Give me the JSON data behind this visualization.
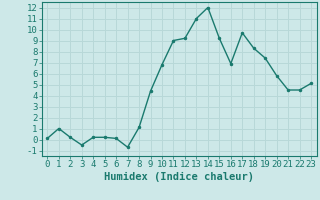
{
  "x": [
    0,
    1,
    2,
    3,
    4,
    5,
    6,
    7,
    8,
    9,
    10,
    11,
    12,
    13,
    14,
    15,
    16,
    17,
    18,
    19,
    20,
    21,
    22,
    23
  ],
  "y": [
    0.1,
    1.0,
    0.2,
    -0.5,
    0.2,
    0.2,
    0.1,
    -0.7,
    1.1,
    4.4,
    6.8,
    9.0,
    9.2,
    11.0,
    12.0,
    9.2,
    6.9,
    9.7,
    8.3,
    7.4,
    5.8,
    4.5,
    4.5,
    5.1
  ],
  "line_color": "#1a7a6e",
  "marker": ".",
  "marker_size": 3,
  "linewidth": 1.0,
  "xlabel": "Humidex (Indice chaleur)",
  "xlim": [
    -0.5,
    23.5
  ],
  "ylim": [
    -1.5,
    12.5
  ],
  "yticks": [
    -1,
    0,
    1,
    2,
    3,
    4,
    5,
    6,
    7,
    8,
    9,
    10,
    11,
    12
  ],
  "xticks": [
    0,
    1,
    2,
    3,
    4,
    5,
    6,
    7,
    8,
    9,
    10,
    11,
    12,
    13,
    14,
    15,
    16,
    17,
    18,
    19,
    20,
    21,
    22,
    23
  ],
  "bg_color": "#cde8e8",
  "grid_color": "#b8d8d8",
  "tick_color": "#1a7a6e",
  "label_color": "#1a7a6e",
  "font_size": 6.5,
  "xlabel_fontsize": 7.5
}
